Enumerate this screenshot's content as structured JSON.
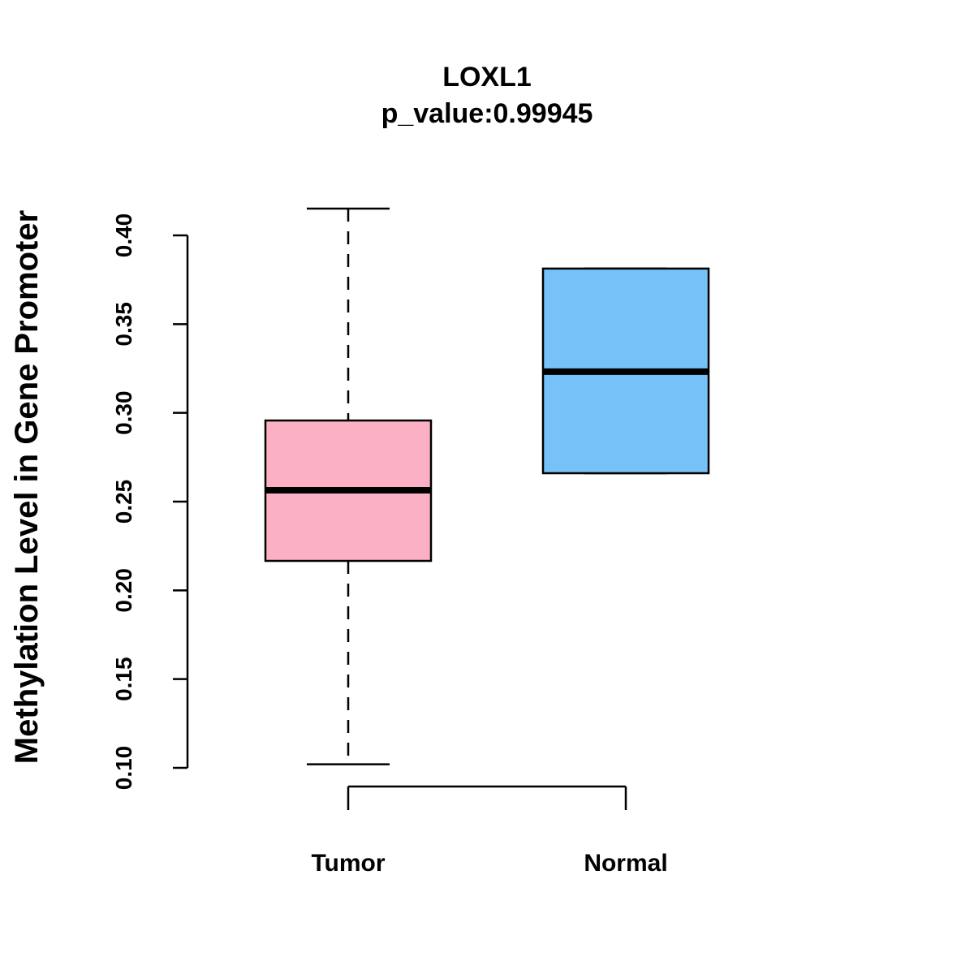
{
  "chart_data": {
    "type": "box",
    "title": "LOXL1",
    "subtitle": "p_value:0.99945",
    "xlabel": "",
    "ylabel": "Methylation Level in Gene Promoter",
    "ylim": [
      0.1,
      0.4
    ],
    "yticks": [
      "0.10",
      "0.15",
      "0.20",
      "0.25",
      "0.30",
      "0.35",
      "0.40"
    ],
    "grid": false,
    "categories": [
      "Tumor",
      "Normal"
    ],
    "boxes": [
      {
        "name": "Tumor",
        "whisker_low": 0.102,
        "q1": 0.2166,
        "median": 0.2564,
        "q3": 0.2957,
        "whisker_high": 0.4151,
        "color": "#FBB1C3"
      },
      {
        "name": "Normal",
        "whisker_low": 0.266,
        "q1": 0.266,
        "median": 0.3232,
        "q3": 0.3813,
        "whisker_high": 0.3813,
        "color": "#76C1F8"
      }
    ]
  }
}
